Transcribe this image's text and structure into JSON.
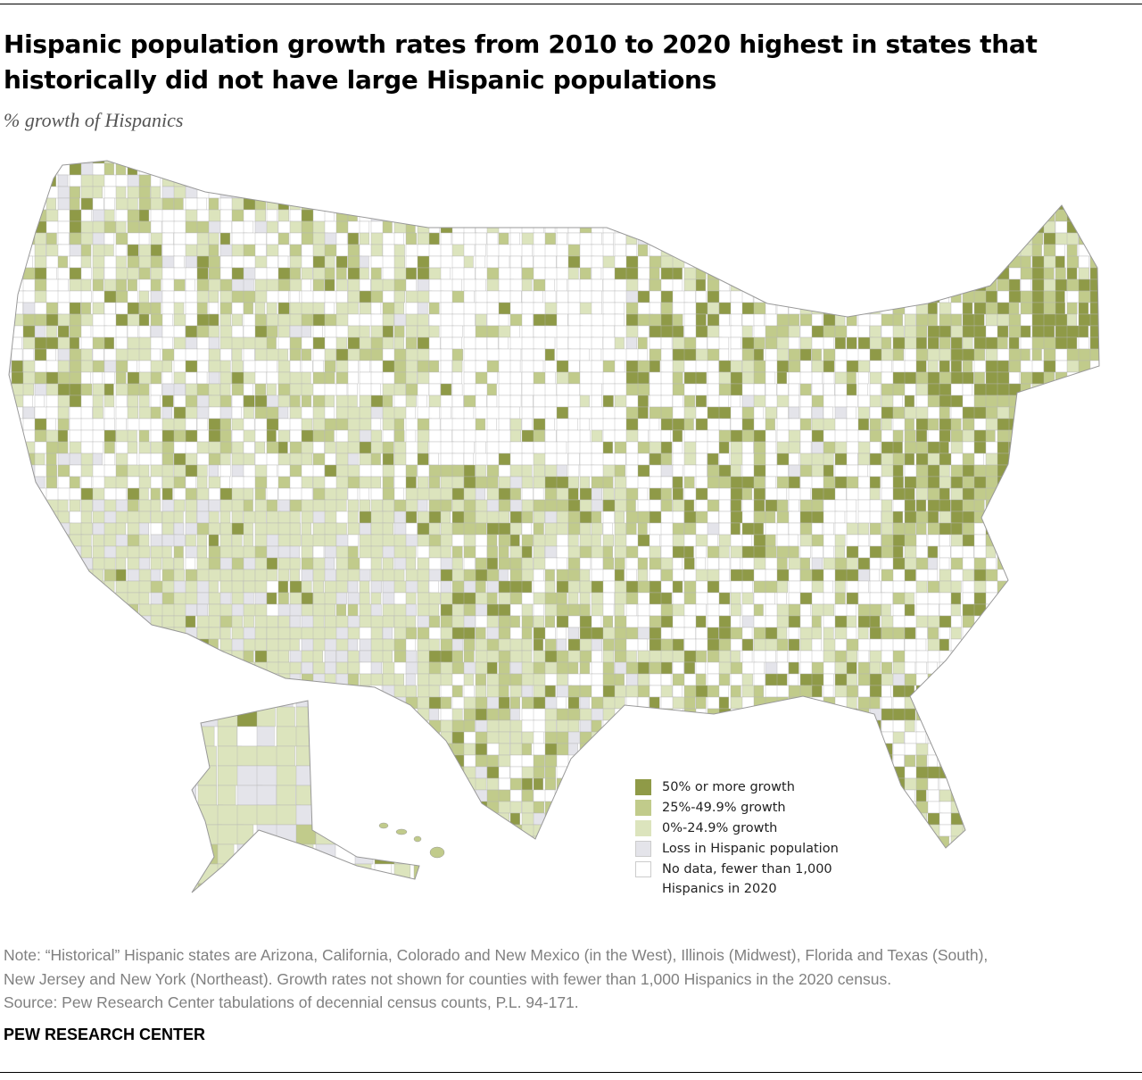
{
  "title": "Hispanic population growth rates from 2010 to 2020 highest in states that historically did not have large Hispanic populations",
  "subtitle": "% growth of Hispanics",
  "legend": [
    {
      "label": "50% or more growth",
      "color": "#8f9a47"
    },
    {
      "label": "25%-49.9% growth",
      "color": "#c1cb8b"
    },
    {
      "label": "0%-24.9% growth",
      "color": "#dce4bd"
    },
    {
      "label": "Loss in Hispanic population",
      "color": "#e4e4ea"
    },
    {
      "label": "No data, fewer than 1,000",
      "label2": "Hispanics in 2020",
      "color": "#ffffff"
    }
  ],
  "notes": [
    "Note: “Historical” Hispanic states are Arizona, California, Colorado and New Mexico (in the West), Illinois (Midwest), Florida and Texas (South),",
    "New Jersey and New York (Northeast). Growth rates not shown for counties with fewer than 1,000 Hispanics in the 2020 census.",
    "Source: Pew Research Center tabulations of decennial census counts, P.L. 94-171."
  ],
  "brand": "PEW RESEARCH CENTER"
}
